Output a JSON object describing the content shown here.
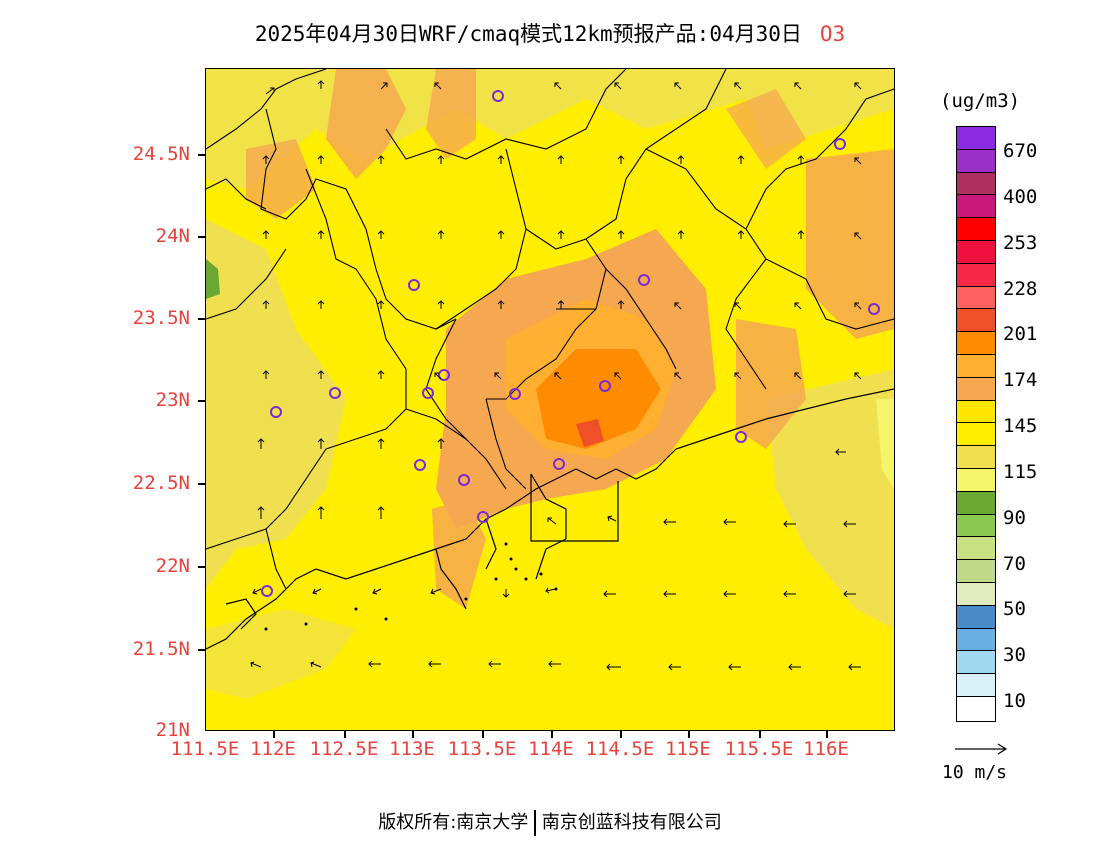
{
  "title": {
    "text": "2025年04月30日WRF/cmaq模式12km预报产品:04月30日",
    "species": "O3"
  },
  "axes": {
    "latitudes": [
      "24.5N",
      "24N",
      "23.5N",
      "23N",
      "22.5N",
      "22N",
      "21.5N",
      "21N"
    ],
    "longitudes": [
      "111.5E",
      "112E",
      "112.5E",
      "113E",
      "113.5E",
      "114E",
      "114.5E",
      "115E",
      "115.5E",
      "116E"
    ]
  },
  "legend": {
    "units": "(ug/m3)",
    "labels": [
      "670",
      "400",
      "253",
      "228",
      "201",
      "174",
      "145",
      "115",
      "90",
      "70",
      "50",
      "30",
      "10"
    ],
    "colors": [
      "#8b2be2",
      "#9b30c8",
      "#b03060",
      "#c8187a",
      "#ff0000",
      "#f01040",
      "#f82848",
      "#ff6060",
      "#f05028",
      "#ff8c00",
      "#ffb030",
      "#f5a850",
      "#ffe600",
      "#ffee00",
      "#f0e050",
      "#f5f56a",
      "#6aa832",
      "#8cc850",
      "#c8e080",
      "#c0d88a",
      "#e0ecc0",
      "#4a8cc8",
      "#68aee0",
      "#a0d8f0",
      "#d8f0f8",
      "#ffffff"
    ]
  },
  "wind_reference": {
    "label": "10 m/s"
  },
  "footer": {
    "left": "版权所有:南京大学",
    "right": "南京创蓝科技有限公司"
  }
}
